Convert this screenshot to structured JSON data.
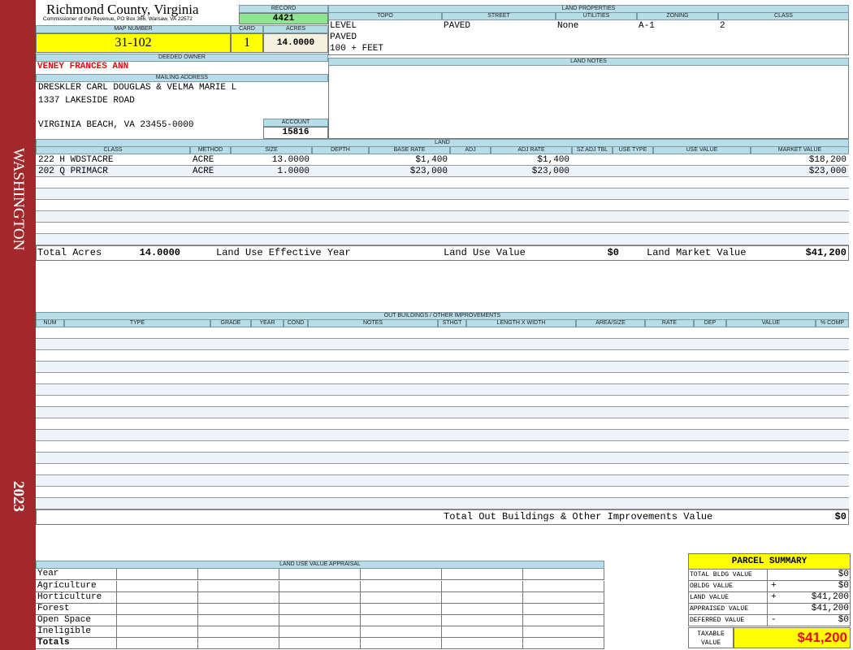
{
  "sidebar": {
    "district": "WASHINGTON",
    "year": "2023"
  },
  "header": {
    "county": "Richmond County, Virginia",
    "address": "Commissioner of the Revenue, PO Box 366, Warsaw, VA 22572"
  },
  "record": {
    "label": "RECORD",
    "value": "4421"
  },
  "map_number": {
    "label": "MAP NUMBER",
    "value": "31-102"
  },
  "card": {
    "label": "CARD",
    "value": "1"
  },
  "acres": {
    "label": "ACRES",
    "value": "14.0000"
  },
  "deeded_owner": {
    "label": "DEEDED OWNER",
    "value": "VENEY FRANCES ANN"
  },
  "mailing_address": {
    "label": "MAILING ADDRESS",
    "lines": [
      "DRESKLER CARL DOUGLAS & VELMA MARIE L",
      "1337 LAKESIDE ROAD",
      "VIRGINIA BEACH, VA 23455-0000"
    ]
  },
  "account": {
    "label": "ACCOUNT",
    "value": "15816"
  },
  "land_properties": {
    "title": "LAND PROPERTIES",
    "columns": [
      {
        "header": "TOPO",
        "values": [
          "LEVEL",
          "PAVED",
          "100 + FEET"
        ]
      },
      {
        "header": "STREET",
        "values": [
          "PAVED"
        ]
      },
      {
        "header": "UTILITIES",
        "values": [
          "None"
        ]
      },
      {
        "header": "ZONING",
        "values": [
          "A-1"
        ]
      },
      {
        "header": "CLASS",
        "values": [
          "2"
        ]
      }
    ]
  },
  "land_notes": {
    "title": "LAND NOTES"
  },
  "land": {
    "title": "LAND",
    "headers": [
      "CLASS",
      "METHOD",
      "SIZE",
      "DEPTH",
      "BASE RATE",
      "ADJ",
      "ADJ RATE",
      "SZ ADJ TBL",
      "USE TYPE",
      "USE VALUE",
      "MARKET VALUE"
    ],
    "rows": [
      {
        "class": "222 H WDSTACRE",
        "method": "ACRE",
        "size": "13.0000",
        "base_rate": "$1,400",
        "adj_rate": "$1,400",
        "market_value": "$18,200"
      },
      {
        "class": "202 Q PRIMACR",
        "method": "ACRE",
        "size": "1.0000",
        "base_rate": "$23,000",
        "adj_rate": "$23,000",
        "market_value": "$23,000"
      }
    ],
    "totals": {
      "total_acres_label": "Total Acres",
      "total_acres": "14.0000",
      "effective_year_label": "Land Use Effective Year",
      "use_value_label": "Land Use Value",
      "use_value": "$0",
      "market_value_label": "Land Market Value",
      "market_value": "$41,200"
    }
  },
  "outbuildings": {
    "title": "OUT BUILDINGS / OTHER IMPROVEMENTS",
    "headers": [
      "NUM",
      "TYPE",
      "GRADE",
      "YEAR",
      "COND",
      "NOTES",
      "STHGT",
      "LENGTH X WIDTH",
      "AREA/SIZE",
      "RATE",
      "DEP",
      "VALUE",
      "% COMP"
    ],
    "total_label": "Total Out Buildings & Other Improvements Value",
    "total_value": "$0"
  },
  "land_use_appraisal": {
    "title": "LAND USE VALUE APPRAISAL",
    "rows": [
      "Year",
      "Agriculture",
      "Horticulture",
      "Forest",
      "Open Space",
      "Ineligible",
      "Totals"
    ]
  },
  "parcel_summary": {
    "title": "PARCEL SUMMARY",
    "rows": [
      {
        "label": "TOTAL BLDG VALUE",
        "value": "$0"
      },
      {
        "label": "OBLDG VALUE",
        "op": "+",
        "value": "$0"
      },
      {
        "label": "LAND VALUE",
        "op": "+",
        "value": "$41,200"
      },
      {
        "label": "APPRAISED VALUE",
        "value": "$41,200"
      },
      {
        "label": "DEFERRED VALUE",
        "op": "-",
        "value": "$0"
      }
    ],
    "taxable": {
      "label": "TAXABLE VALUE",
      "value": "$41,200"
    }
  }
}
